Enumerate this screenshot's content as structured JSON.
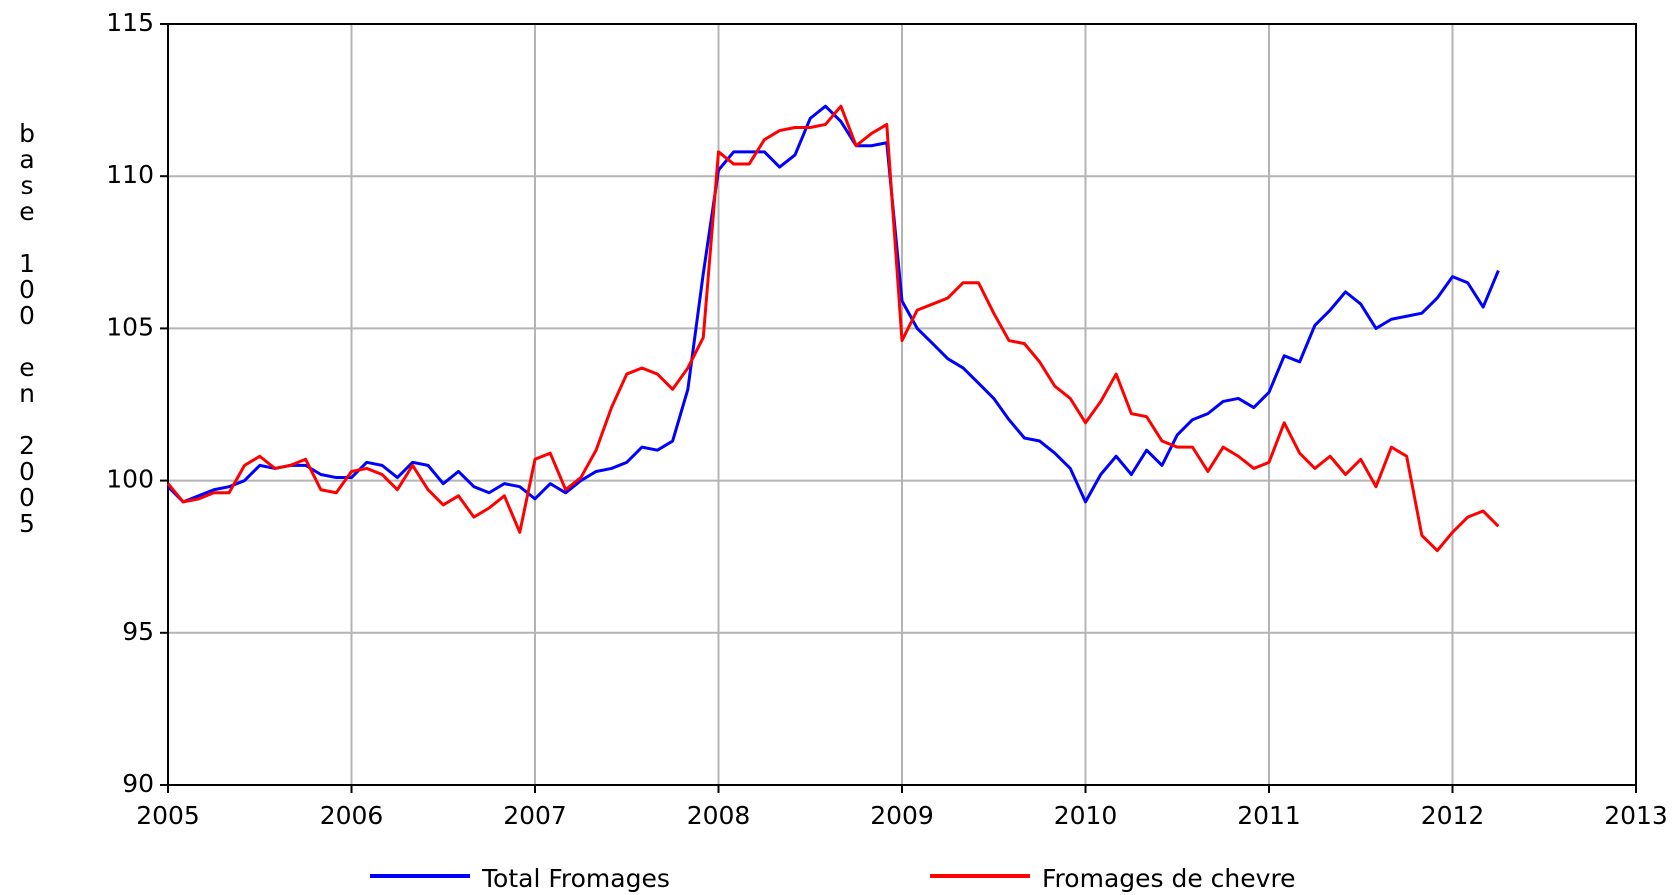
{
  "chart_data": {
    "type": "line",
    "ylabel": "base 100 en 2005",
    "x": [
      2005,
      2005.083,
      2005.167,
      2005.25,
      2005.333,
      2005.417,
      2005.5,
      2005.583,
      2005.667,
      2005.75,
      2005.833,
      2005.917,
      2006,
      2006.083,
      2006.167,
      2006.25,
      2006.333,
      2006.417,
      2006.5,
      2006.583,
      2006.667,
      2006.75,
      2006.833,
      2006.917,
      2007,
      2007.083,
      2007.167,
      2007.25,
      2007.333,
      2007.417,
      2007.5,
      2007.583,
      2007.667,
      2007.75,
      2007.833,
      2007.917,
      2008,
      2008.083,
      2008.167,
      2008.25,
      2008.333,
      2008.417,
      2008.5,
      2008.583,
      2008.667,
      2008.75,
      2008.833,
      2008.917,
      2009,
      2009.083,
      2009.167,
      2009.25,
      2009.333,
      2009.417,
      2009.5,
      2009.583,
      2009.667,
      2009.75,
      2009.833,
      2009.917,
      2010,
      2010.083,
      2010.167,
      2010.25,
      2010.333,
      2010.417,
      2010.5,
      2010.583,
      2010.667,
      2010.75,
      2010.833,
      2010.917,
      2011,
      2011.083,
      2011.167,
      2011.25,
      2011.333,
      2011.417,
      2011.5,
      2011.583,
      2011.667,
      2011.75,
      2011.833,
      2011.917,
      2012,
      2012.083,
      2012.167,
      2012.25
    ],
    "series": [
      {
        "name": "Total Fromages",
        "color": "#0000ff",
        "values": [
          99.8,
          99.3,
          99.5,
          99.7,
          99.8,
          100.0,
          100.5,
          100.4,
          100.5,
          100.5,
          100.2,
          100.1,
          100.1,
          100.6,
          100.5,
          100.1,
          100.6,
          100.5,
          99.9,
          100.3,
          99.8,
          99.6,
          99.9,
          99.8,
          99.4,
          99.9,
          99.6,
          100.0,
          100.3,
          100.4,
          100.6,
          101.1,
          101.0,
          101.3,
          103.0,
          106.8,
          110.2,
          110.8,
          110.8,
          110.8,
          110.3,
          110.7,
          111.9,
          112.3,
          111.8,
          111.0,
          111.0,
          111.1,
          105.9,
          105.0,
          104.5,
          104.0,
          103.7,
          103.2,
          102.7,
          102.0,
          101.4,
          101.3,
          100.9,
          100.4,
          99.3,
          100.2,
          100.8,
          100.2,
          101.0,
          100.5,
          101.5,
          102.0,
          102.2,
          102.6,
          102.7,
          102.4,
          102.9,
          104.1,
          103.9,
          105.1,
          105.6,
          106.2,
          105.8,
          105.0,
          105.3,
          105.4,
          105.5,
          106.0,
          106.7,
          106.5,
          105.7,
          106.9
        ]
      },
      {
        "name": "Fromages de chevre",
        "color": "#ff0000",
        "values": [
          99.9,
          99.3,
          99.4,
          99.6,
          99.6,
          100.5,
          100.8,
          100.4,
          100.5,
          100.7,
          99.7,
          99.6,
          100.3,
          100.4,
          100.2,
          99.7,
          100.5,
          99.7,
          99.2,
          99.5,
          98.8,
          99.1,
          99.5,
          98.3,
          100.7,
          100.9,
          99.7,
          100.1,
          101.0,
          102.4,
          103.5,
          103.7,
          103.5,
          103.0,
          103.7,
          104.7,
          110.8,
          110.4,
          110.4,
          111.2,
          111.5,
          111.6,
          111.6,
          111.7,
          112.3,
          111.0,
          111.4,
          111.7,
          104.6,
          105.6,
          105.8,
          106.0,
          106.5,
          106.5,
          105.5,
          104.6,
          104.5,
          103.9,
          103.1,
          102.7,
          101.9,
          102.6,
          103.5,
          102.2,
          102.1,
          101.3,
          101.1,
          101.1,
          100.3,
          101.1,
          100.8,
          100.4,
          100.6,
          101.9,
          100.9,
          100.4,
          100.8,
          100.2,
          100.7,
          99.8,
          101.1,
          100.8,
          98.2,
          97.7,
          98.3,
          98.8,
          99.0,
          98.5
        ]
      }
    ],
    "xlim": [
      2005,
      2013
    ],
    "xticks": [
      2005,
      2006,
      2007,
      2008,
      2009,
      2010,
      2011,
      2012,
      2013
    ],
    "ylim": [
      90,
      115
    ],
    "yticks": [
      90,
      95,
      100,
      105,
      110,
      115
    ],
    "grid": true,
    "legend": "bottom"
  }
}
